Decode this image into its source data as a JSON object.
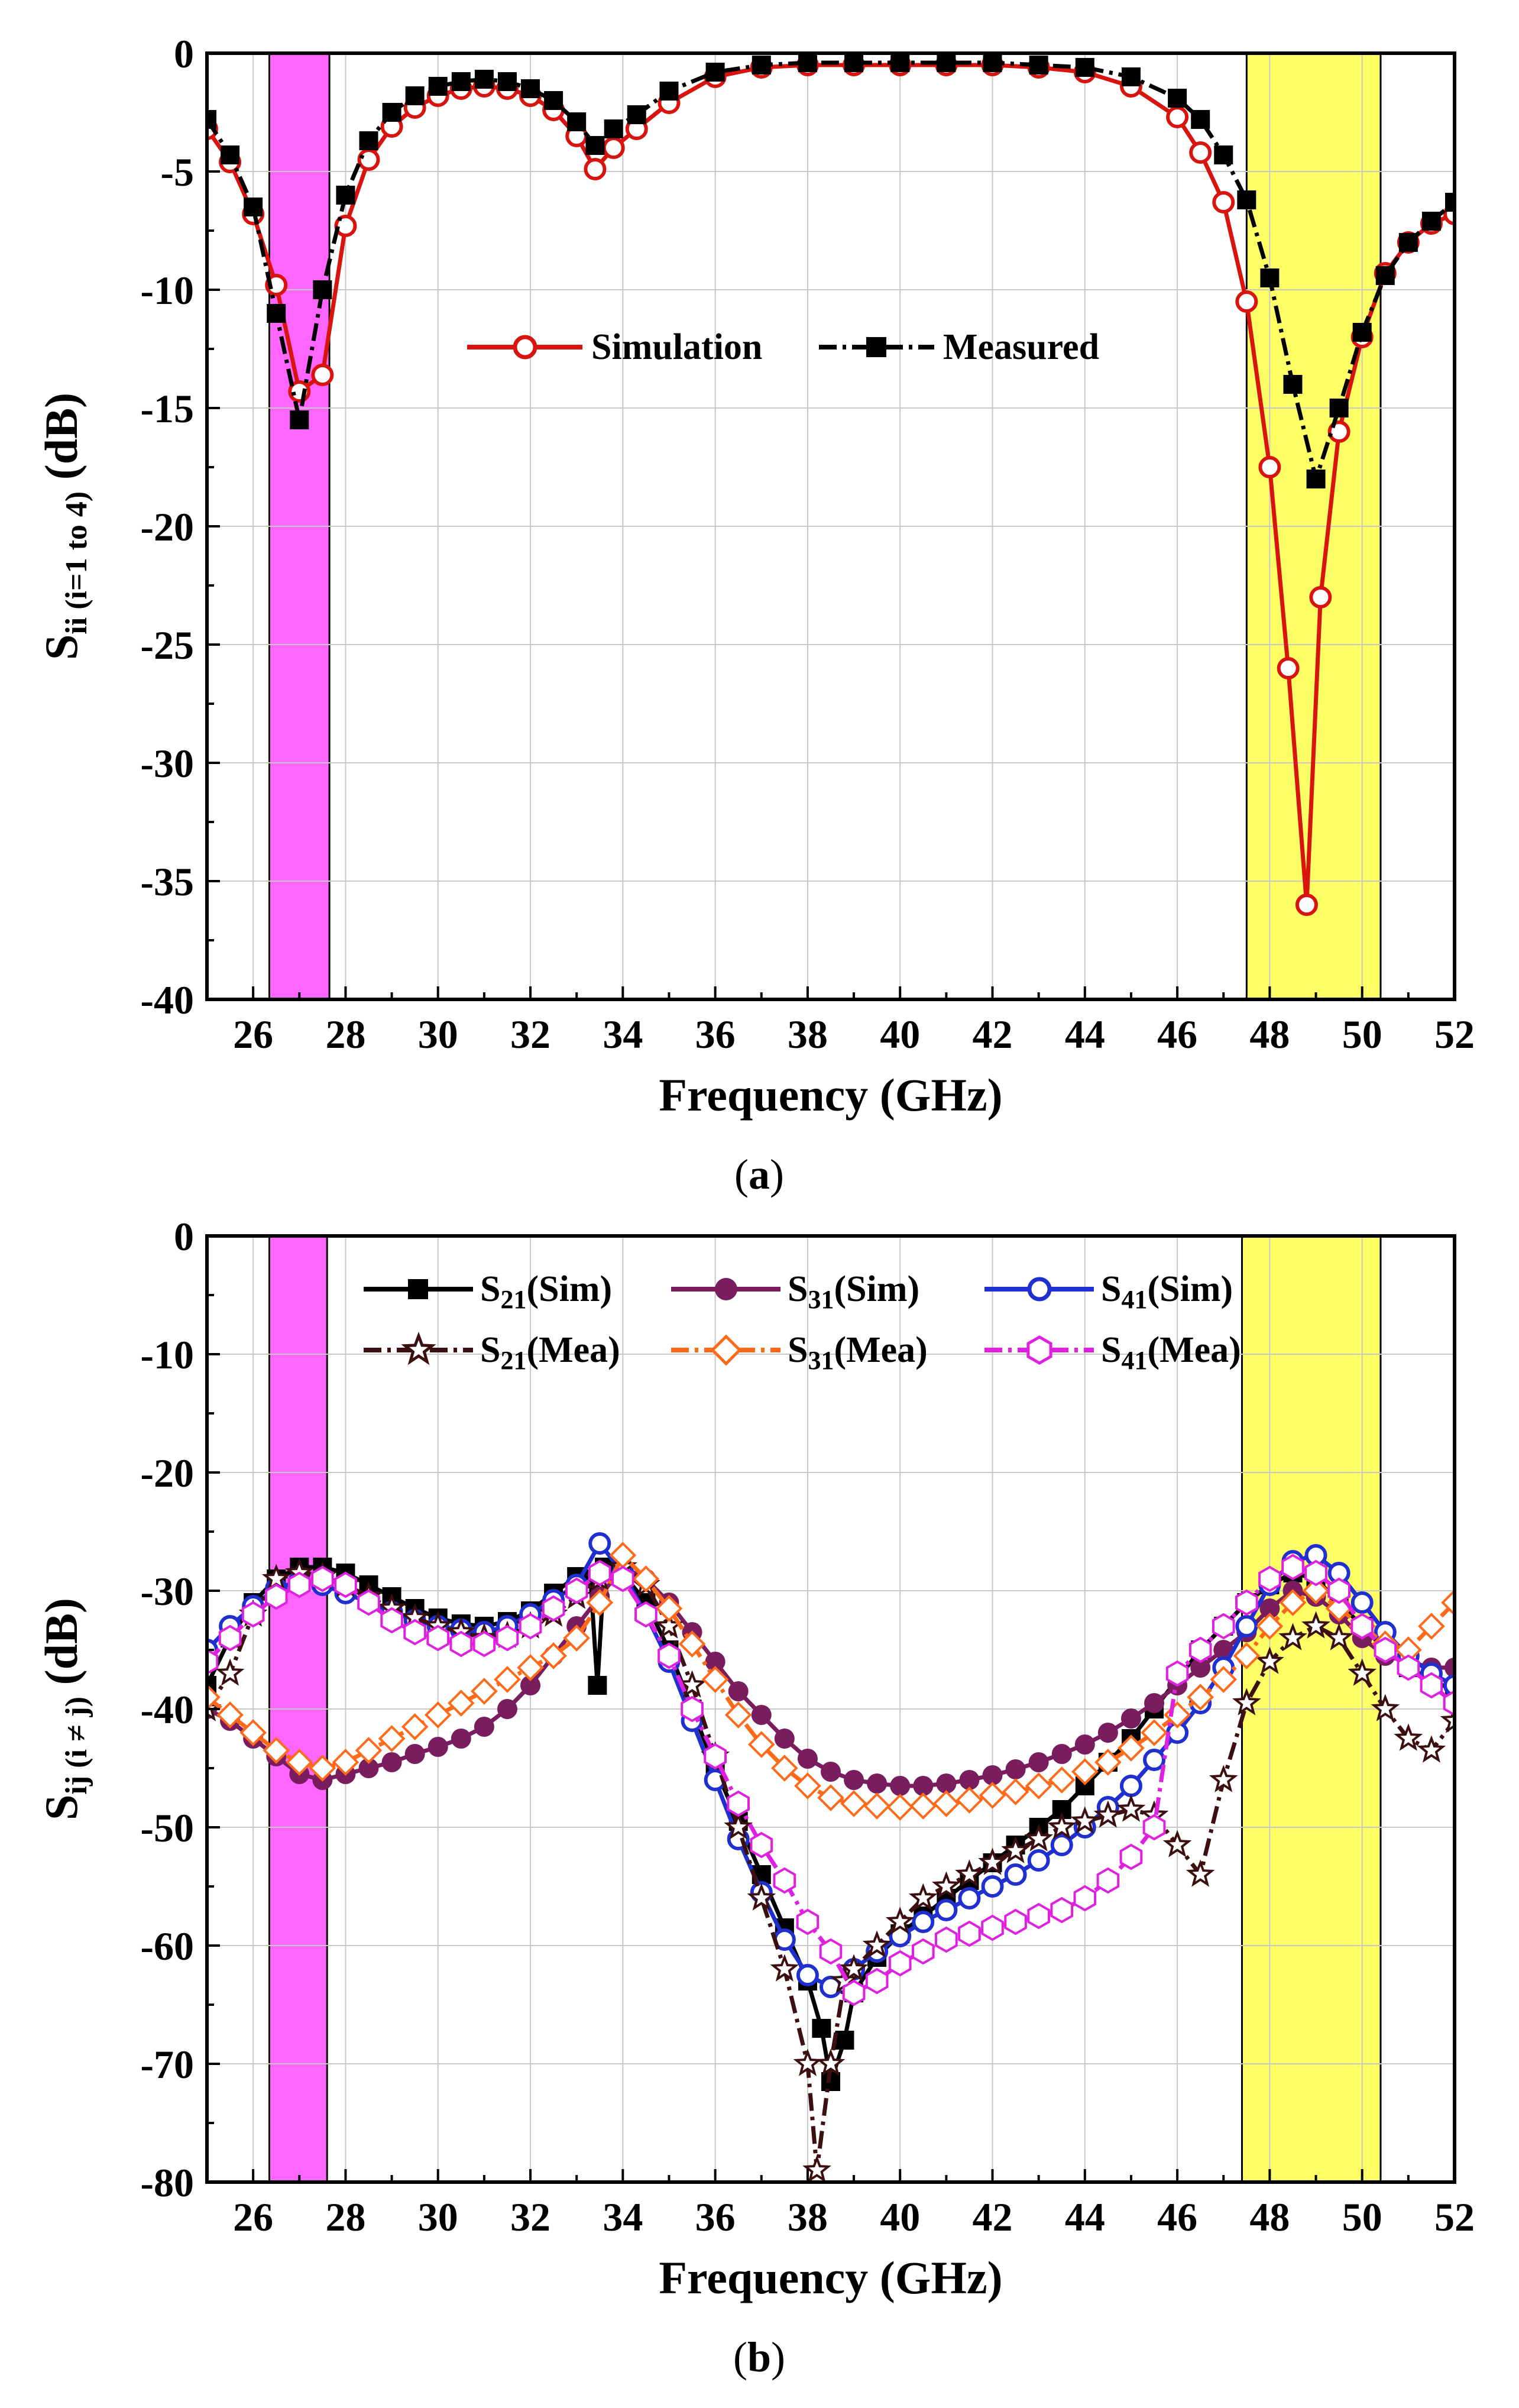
{
  "chart_data": [
    {
      "type": "line",
      "caption_open": "(",
      "caption_letter": "a",
      "caption_close": ")",
      "xlabel": "Frequency (GHz)",
      "ylabel_main": "S",
      "ylabel_sub": "ii (i=1 to 4)",
      "ylabel_unit": " (dB)",
      "xlim": [
        25,
        52
      ],
      "ylim": [
        -40,
        0
      ],
      "xticks": [
        "26",
        "28",
        "30",
        "32",
        "34",
        "36",
        "38",
        "40",
        "42",
        "44",
        "46",
        "48",
        "50",
        "52"
      ],
      "yticks": [
        "0",
        "-5",
        "-10",
        "-15",
        "-20",
        "-25",
        "-30",
        "-35",
        "-40"
      ],
      "grid": true,
      "legend_position": "center",
      "bands": [
        {
          "from": 26.35,
          "to": 27.65,
          "color": "#ff66ff"
        },
        {
          "from": 47.5,
          "to": 50.4,
          "color": "#ffff66"
        }
      ],
      "series": [
        {
          "name": "Simulation",
          "color": "#d9140e",
          "dash": "",
          "marker": "circle-open",
          "x": [
            25,
            25.5,
            26,
            26.5,
            27,
            27.5,
            28,
            28.5,
            29,
            29.5,
            30,
            30.5,
            31,
            31.5,
            32,
            32.5,
            33,
            33.4,
            33.8,
            34.3,
            35,
            36,
            37,
            38,
            39,
            40,
            41,
            42,
            43,
            44,
            45,
            46,
            46.5,
            47,
            47.5,
            48,
            48.4,
            48.8,
            49.1,
            49.5,
            50,
            50.5,
            51,
            51.5,
            52
          ],
          "y": [
            -3.2,
            -4.6,
            -6.8,
            -9.8,
            -14.3,
            -13.6,
            -7.3,
            -4.5,
            -3.1,
            -2.3,
            -1.8,
            -1.5,
            -1.4,
            -1.5,
            -1.8,
            -2.4,
            -3.5,
            -4.9,
            -4,
            -3.2,
            -2.1,
            -1,
            -0.6,
            -0.5,
            -0.5,
            -0.5,
            -0.5,
            -0.5,
            -0.6,
            -0.8,
            -1.4,
            -2.7,
            -4.2,
            -6.3,
            -10.5,
            -17.5,
            -26,
            -36,
            -23,
            -16,
            -12,
            -9.3,
            -8,
            -7.2,
            -6.8
          ]
        },
        {
          "name": "Measured",
          "color": "#000000",
          "dash": "30 10 6 10",
          "marker": "square-filled",
          "x": [
            25,
            25.5,
            26,
            26.5,
            27,
            27.5,
            28,
            28.5,
            29,
            29.5,
            30,
            30.5,
            31,
            31.5,
            32,
            32.5,
            33,
            33.4,
            33.8,
            34.3,
            35,
            36,
            37,
            38,
            39,
            40,
            41,
            42,
            43,
            44,
            45,
            46,
            46.5,
            47,
            47.5,
            48,
            48.5,
            49,
            49.5,
            50,
            50.5,
            51,
            51.5,
            52
          ],
          "y": [
            -2.8,
            -4.3,
            -6.5,
            -11,
            -15.5,
            -10,
            -6,
            -3.7,
            -2.5,
            -1.8,
            -1.4,
            -1.2,
            -1.1,
            -1.2,
            -1.5,
            -2,
            -2.9,
            -3.9,
            -3.2,
            -2.6,
            -1.6,
            -0.8,
            -0.5,
            -0.4,
            -0.4,
            -0.4,
            -0.4,
            -0.4,
            -0.5,
            -0.6,
            -1,
            -1.9,
            -2.8,
            -4.3,
            -6.2,
            -9.5,
            -14,
            -18,
            -15,
            -11.8,
            -9.4,
            -8,
            -7.1,
            -6.3
          ]
        }
      ]
    },
    {
      "type": "line",
      "caption_open": "(",
      "caption_letter": "b",
      "caption_close": ")",
      "xlabel": "Frequency (GHz)",
      "ylabel_main": "S",
      "ylabel_sub": "ij (i ≠ j)",
      "ylabel_unit": " (dB)",
      "xlim": [
        25,
        52
      ],
      "ylim": [
        -80,
        0
      ],
      "xticks": [
        "26",
        "28",
        "30",
        "32",
        "34",
        "36",
        "38",
        "40",
        "42",
        "44",
        "46",
        "48",
        "50",
        "52"
      ],
      "yticks": [
        "0",
        "-10",
        "-20",
        "-30",
        "-40",
        "-50",
        "-60",
        "-70",
        "-80"
      ],
      "grid": true,
      "legend_position": "top",
      "bands": [
        {
          "from": 26.35,
          "to": 27.6,
          "color": "#ff66ff"
        },
        {
          "from": 47.4,
          "to": 50.4,
          "color": "#ffff66"
        }
      ],
      "series": [
        {
          "name_main": "S",
          "name_sub": "21",
          "name_suffix": "(Sim)",
          "color": "#000000",
          "dash": "",
          "marker": "square-filled",
          "x": [
            25,
            25.5,
            26,
            26.5,
            27,
            27.5,
            28,
            28.5,
            29,
            29.5,
            30,
            30.5,
            31,
            31.5,
            32,
            32.5,
            33,
            33.3,
            33.45,
            33.6,
            34,
            34.5,
            35,
            35.5,
            36,
            36.5,
            37,
            37.5,
            38,
            38.3,
            38.5,
            38.8,
            39,
            39.5,
            40,
            40.5,
            41,
            41.5,
            42,
            42.5,
            43,
            43.5,
            44,
            44.5,
            45,
            45.5,
            46,
            46.5,
            47,
            47.5,
            48,
            48.5,
            49,
            49.5,
            50,
            50.5,
            51,
            51.5,
            52
          ],
          "y": [
            -38,
            -34,
            -31,
            -29,
            -28,
            -28,
            -28.5,
            -29.5,
            -30.5,
            -31.5,
            -32.3,
            -32.8,
            -33,
            -32.6,
            -31.7,
            -30.2,
            -28.8,
            -29,
            -38,
            -28,
            -28.5,
            -31,
            -35,
            -40,
            -45,
            -49.5,
            -54,
            -58.5,
            -63,
            -67,
            -71.5,
            -68,
            -64,
            -61,
            -59,
            -57.5,
            -56,
            -54.5,
            -53,
            -51.5,
            -50,
            -48.5,
            -46.5,
            -44.5,
            -42.5,
            -40,
            -37.5,
            -35,
            -33,
            -31,
            -29.5,
            -28.5,
            -29,
            -31,
            -33,
            -35,
            -36.5,
            -37.5,
            -38.5
          ]
        },
        {
          "name_main": "S",
          "name_sub": "31",
          "name_suffix": "(Sim)",
          "color": "#7a1d5e",
          "dash": "",
          "marker": "circle-filled",
          "x": [
            25,
            25.5,
            26,
            26.5,
            27,
            27.5,
            28,
            28.5,
            29,
            29.5,
            30,
            30.5,
            31,
            31.5,
            32,
            32.5,
            33,
            33.5,
            34,
            34.5,
            35,
            35.5,
            36,
            36.5,
            37,
            37.5,
            38,
            38.5,
            39,
            39.5,
            40,
            40.5,
            41,
            41.5,
            42,
            42.5,
            43,
            43.5,
            44,
            44.5,
            45,
            45.5,
            46,
            46.5,
            47,
            47.5,
            48,
            48.5,
            49,
            49.5,
            50,
            50.5,
            51,
            51.5,
            52
          ],
          "y": [
            -40,
            -41,
            -42.5,
            -44,
            -45.5,
            -46,
            -45.5,
            -45,
            -44.5,
            -43.8,
            -43.2,
            -42.5,
            -41.5,
            -40,
            -38,
            -35.5,
            -33,
            -30.5,
            -28,
            -29,
            -31,
            -33.5,
            -36,
            -38.5,
            -40.5,
            -42.5,
            -44.2,
            -45.3,
            -46,
            -46.3,
            -46.5,
            -46.5,
            -46.3,
            -46,
            -45.6,
            -45.1,
            -44.5,
            -43.8,
            -43,
            -42,
            -40.8,
            -39.5,
            -38,
            -36.5,
            -35,
            -33.5,
            -31.5,
            -30,
            -30.5,
            -32,
            -34,
            -35.5,
            -36,
            -36.5,
            -36.5
          ]
        },
        {
          "name_main": "S",
          "name_sub": "41",
          "name_suffix": "(Sim)",
          "color": "#1f2fd0",
          "dash": "",
          "marker": "circle-open",
          "x": [
            25,
            25.5,
            26,
            26.5,
            27,
            27.5,
            28,
            28.5,
            29,
            29.5,
            30,
            30.5,
            31,
            31.5,
            32,
            32.5,
            33,
            33.5,
            34,
            34.5,
            35,
            35.5,
            36,
            36.5,
            37,
            37.5,
            38,
            38.5,
            39,
            39.5,
            40,
            40.5,
            41,
            41.5,
            42,
            42.5,
            43,
            43.5,
            44,
            44.5,
            45,
            45.5,
            46,
            46.5,
            47,
            47.5,
            48,
            48.5,
            49,
            49.5,
            50,
            50.5,
            51,
            51.5,
            52
          ],
          "y": [
            -35,
            -33,
            -31.3,
            -29.8,
            -29.2,
            -29.5,
            -30.2,
            -31,
            -31.8,
            -32.5,
            -33,
            -33.3,
            -33.5,
            -33,
            -32,
            -30.8,
            -29.5,
            -26,
            -28.5,
            -32,
            -36,
            -41,
            -46,
            -51,
            -55.5,
            -59.5,
            -62.5,
            -63.5,
            -62,
            -60.5,
            -59.2,
            -58,
            -57,
            -56,
            -55,
            -54,
            -52.8,
            -51.5,
            -50,
            -48.3,
            -46.5,
            -44.3,
            -42,
            -39.5,
            -36.5,
            -33,
            -29.5,
            -27.5,
            -27,
            -28.5,
            -31,
            -33.5,
            -35.5,
            -37,
            -38
          ]
        },
        {
          "name_main": "S",
          "name_sub": "21",
          "name_suffix": "(Mea)",
          "color": "#3c1010",
          "dash": "30 10 6 10",
          "marker": "star-open",
          "x": [
            25,
            25.5,
            26,
            26.5,
            27,
            27.5,
            28,
            28.5,
            29,
            29.5,
            30,
            30.5,
            31,
            31.5,
            32,
            32.5,
            33,
            33.5,
            34,
            34.5,
            35,
            35.5,
            36,
            36.5,
            37,
            37.5,
            38,
            38.2,
            38.5,
            38.8,
            39,
            39.5,
            40,
            40.5,
            41,
            41.5,
            42,
            42.5,
            43,
            43.5,
            44,
            44.5,
            45,
            45.5,
            46,
            46.5,
            47,
            47.5,
            48,
            48.5,
            49,
            49.5,
            50,
            50.5,
            51,
            51.5,
            52
          ],
          "y": [
            -40,
            -37,
            -32,
            -29,
            -28.5,
            -28.8,
            -29.5,
            -30.5,
            -31.5,
            -32.3,
            -33,
            -33.5,
            -34,
            -33.8,
            -33,
            -32,
            -30.5,
            -29,
            -28,
            -29.5,
            -33,
            -38,
            -44,
            -50,
            -56,
            -62,
            -70,
            -79,
            -70,
            -63,
            -62,
            -60,
            -58,
            -56,
            -55,
            -54,
            -53,
            -52,
            -51,
            -50,
            -49.5,
            -49,
            -48.5,
            -49,
            -51.5,
            -54,
            -46,
            -39.5,
            -36,
            -34,
            -33,
            -34,
            -37,
            -40,
            -42.5,
            -43.5,
            -41
          ]
        },
        {
          "name_main": "S",
          "name_sub": "31",
          "name_suffix": "(Mea)",
          "color": "#ff6a1a",
          "dash": "30 10 6 10",
          "marker": "diamond-open",
          "x": [
            25,
            25.5,
            26,
            26.5,
            27,
            27.5,
            28,
            28.5,
            29,
            29.5,
            30,
            30.5,
            31,
            31.5,
            32,
            32.5,
            33,
            33.5,
            34,
            34.5,
            35,
            35.5,
            36,
            36.5,
            37,
            37.5,
            38,
            38.5,
            39,
            39.5,
            40,
            40.5,
            41,
            41.5,
            42,
            42.5,
            43,
            43.5,
            44,
            44.5,
            45,
            45.5,
            46,
            46.5,
            47,
            47.5,
            48,
            48.5,
            49,
            49.5,
            50,
            50.5,
            51,
            51.5,
            52
          ],
          "y": [
            -39,
            -40.5,
            -42,
            -43.5,
            -44.5,
            -45,
            -44.5,
            -43.5,
            -42.5,
            -41.5,
            -40.5,
            -39.5,
            -38.5,
            -37.5,
            -36.5,
            -35.5,
            -34,
            -31,
            -27,
            -29,
            -31.5,
            -34.5,
            -37.5,
            -40.5,
            -43,
            -45,
            -46.5,
            -47.5,
            -48,
            -48.2,
            -48.3,
            -48.2,
            -48,
            -47.7,
            -47.3,
            -47,
            -46.5,
            -46,
            -45.3,
            -44.5,
            -43.3,
            -42,
            -40.5,
            -39,
            -37.5,
            -35.5,
            -33,
            -31,
            -30,
            -31.5,
            -33,
            -34.5,
            -35,
            -33,
            -31
          ]
        },
        {
          "name_main": "S",
          "name_sub": "41",
          "name_suffix": "(Mea)",
          "color": "#e020e0",
          "dash": "30 10 6 10",
          "marker": "hexagon-open",
          "x": [
            25,
            25.5,
            26,
            26.5,
            27,
            27.5,
            28,
            28.5,
            29,
            29.5,
            30,
            30.5,
            31,
            31.5,
            32,
            32.5,
            33,
            33.5,
            34,
            34.5,
            35,
            35.5,
            36,
            36.5,
            37,
            37.5,
            38,
            38.5,
            39,
            39.5,
            40,
            40.5,
            41,
            41.5,
            42,
            42.5,
            43,
            43.5,
            44,
            44.5,
            45,
            45.5,
            46,
            46.5,
            47,
            47.5,
            48,
            48.5,
            49,
            49.5,
            50,
            50.5,
            51,
            51.5,
            52
          ],
          "y": [
            -36,
            -34,
            -32,
            -30.5,
            -29.5,
            -29,
            -29.5,
            -31,
            -32.5,
            -33.5,
            -34,
            -34.5,
            -34.5,
            -34,
            -33,
            -31.5,
            -30,
            -28.5,
            -29,
            -32,
            -35.5,
            -40,
            -44,
            -48,
            -51.5,
            -54.5,
            -58,
            -60.5,
            -64,
            -63,
            -61.5,
            -60.5,
            -59.5,
            -59,
            -58.5,
            -58,
            -57.5,
            -57,
            -56,
            -54.5,
            -52.5,
            -50,
            -37,
            -35,
            -33,
            -31,
            -29,
            -28,
            -28.5,
            -30,
            -33,
            -35,
            -36.5,
            -38,
            -39.5
          ]
        }
      ]
    }
  ]
}
